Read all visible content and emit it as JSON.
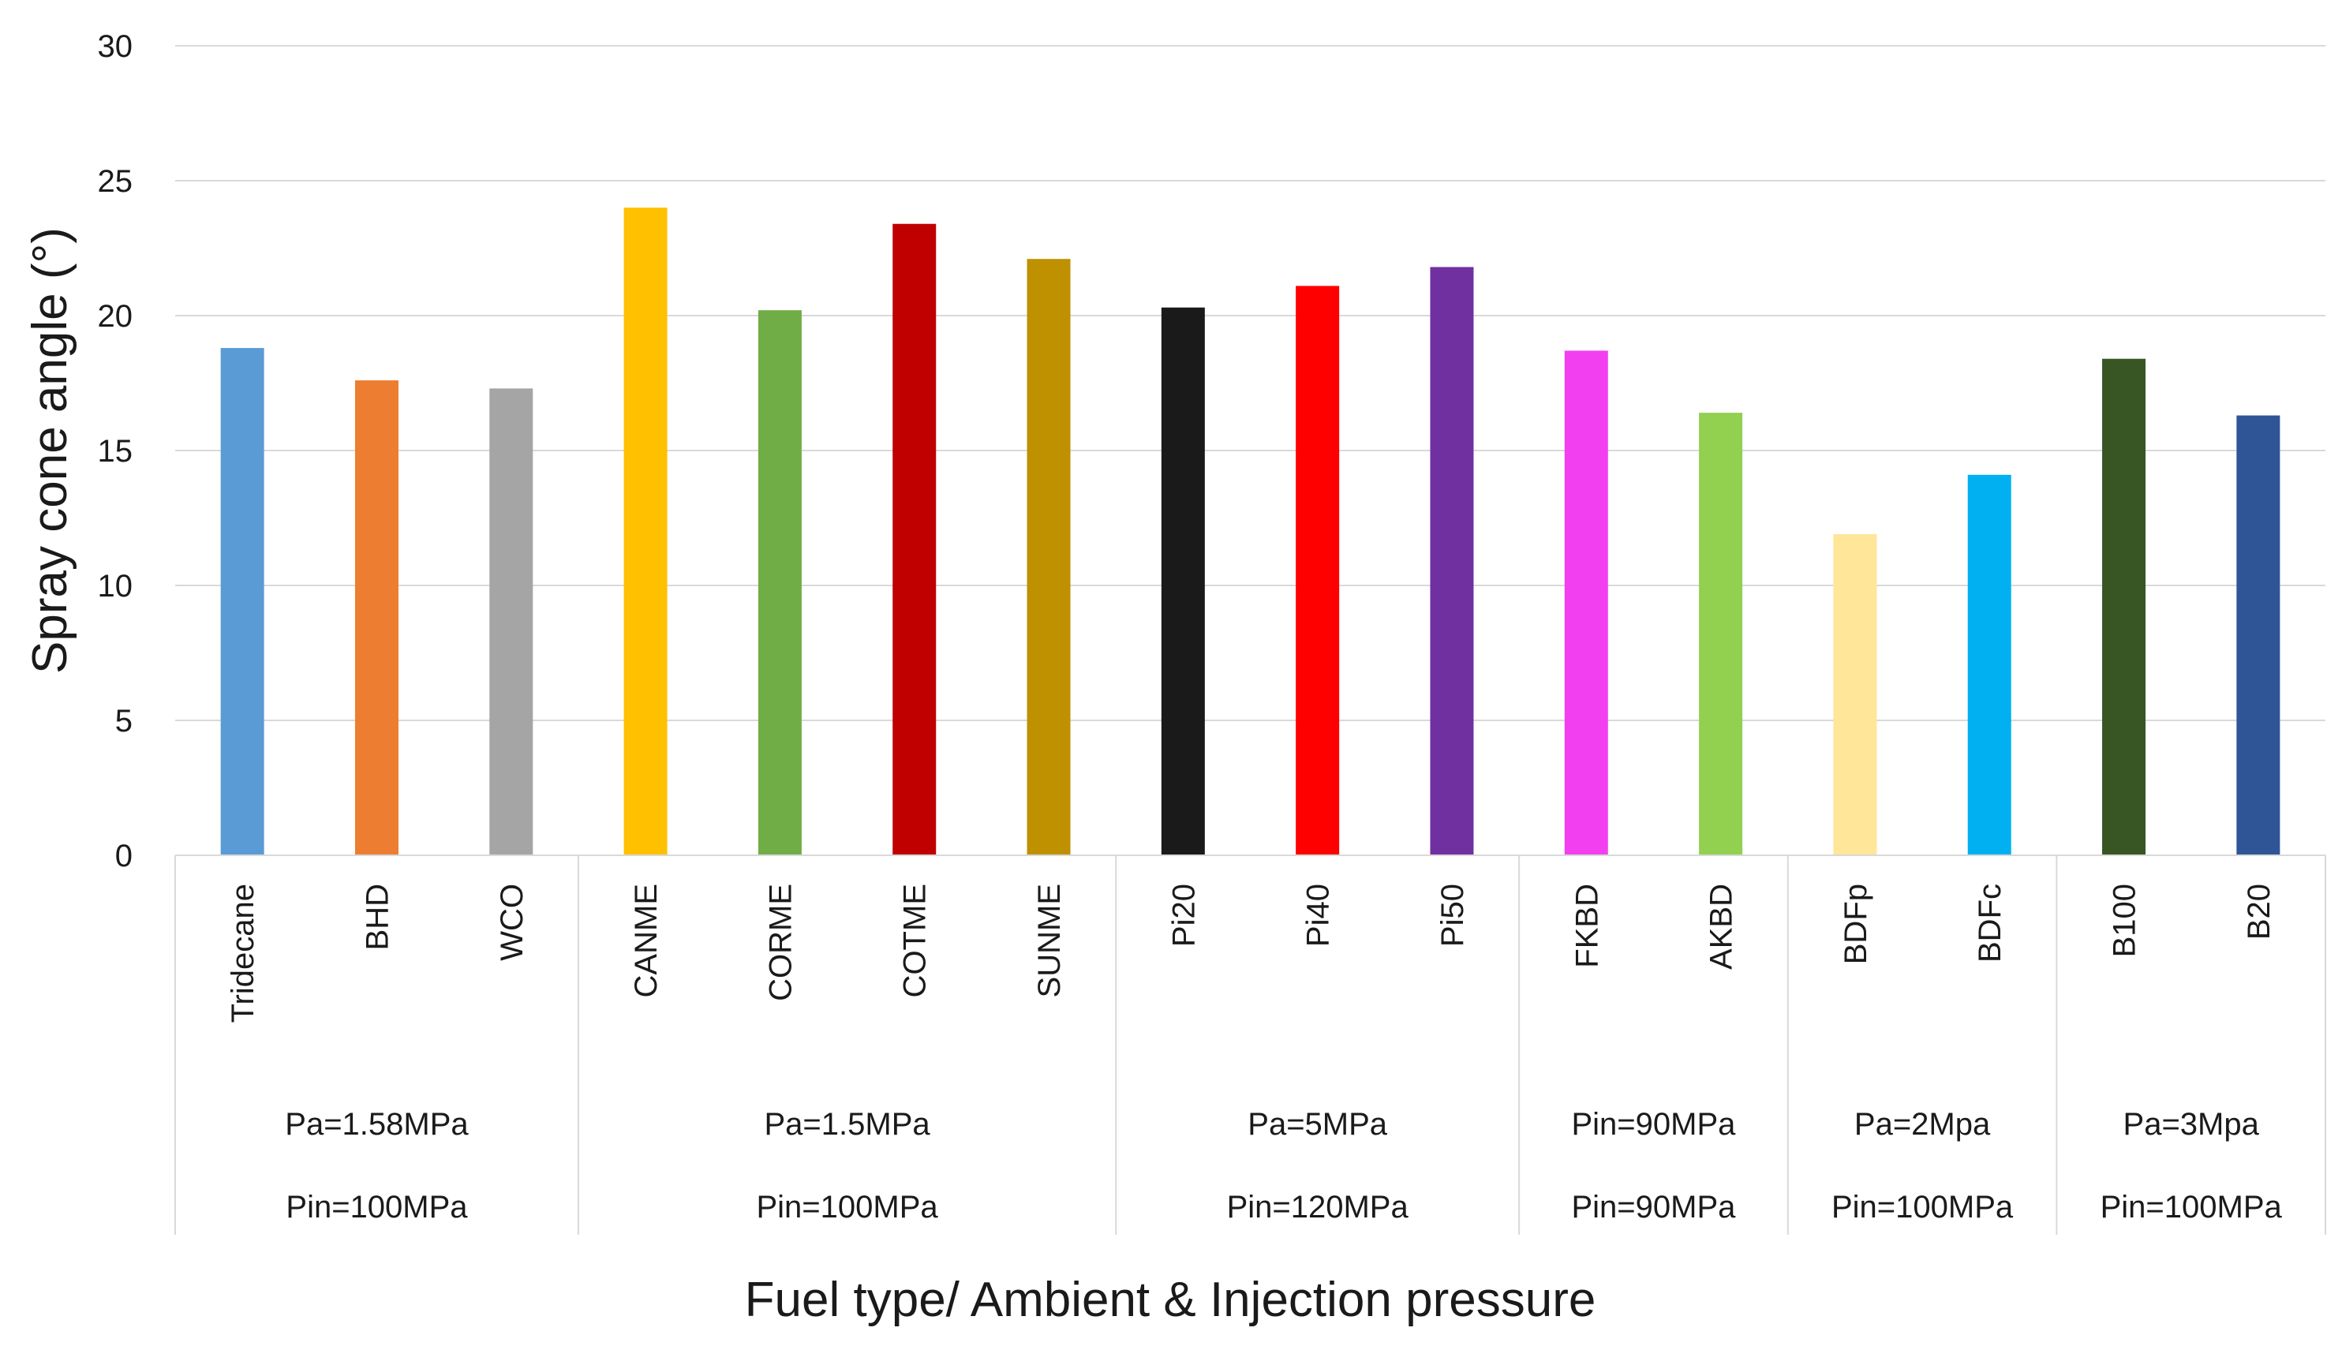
{
  "chart_data": {
    "type": "bar",
    "title": "",
    "xlabel": "Fuel type/ Ambient & Injection pressure",
    "ylabel": "Spray cone angle (°)",
    "ylim": [
      0,
      30
    ],
    "yticks": [
      0,
      5,
      10,
      15,
      20,
      25,
      30
    ],
    "grid": "horizontal",
    "legend": "none",
    "categories": [
      "Tridecane",
      "BHD",
      "WCO",
      "CANME",
      "CORME",
      "COTME",
      "SUNME",
      "Pi20",
      "Pi40",
      "Pi50",
      "FKBD",
      "AKBD",
      "BDFp",
      "BDFc",
      "B100",
      "B20"
    ],
    "values": [
      18.8,
      17.6,
      17.3,
      24.0,
      20.2,
      23.4,
      22.1,
      20.3,
      21.1,
      21.8,
      18.7,
      16.4,
      11.9,
      14.1,
      18.4,
      16.3
    ],
    "colors": [
      "#5b9bd5",
      "#ed7d31",
      "#a5a5a5",
      "#ffc000",
      "#70ad47",
      "#c00000",
      "#bf9000",
      "#1a1a1a",
      "#ff0000",
      "#7030a0",
      "#f23ff0",
      "#92d050",
      "#ffe699",
      "#00b0f0",
      "#375623",
      "#2f5597"
    ],
    "groups": [
      {
        "ambient": "Pa=1.58MPa",
        "injection": "Pin=100MPa",
        "size": 3
      },
      {
        "ambient": "Pa=1.5MPa",
        "injection": "Pin=100MPa",
        "size": 4
      },
      {
        "ambient": "Pa=5MPa",
        "injection": "Pin=120MPa",
        "size": 3
      },
      {
        "ambient": "Pin=90MPa",
        "injection": "Pin=90MPa",
        "size": 2
      },
      {
        "ambient": "Pa=2Mpa",
        "injection": "Pin=100MPa",
        "size": 2
      },
      {
        "ambient": "Pa=3Mpa",
        "injection": "Pin=100MPa",
        "size": 2
      }
    ]
  }
}
